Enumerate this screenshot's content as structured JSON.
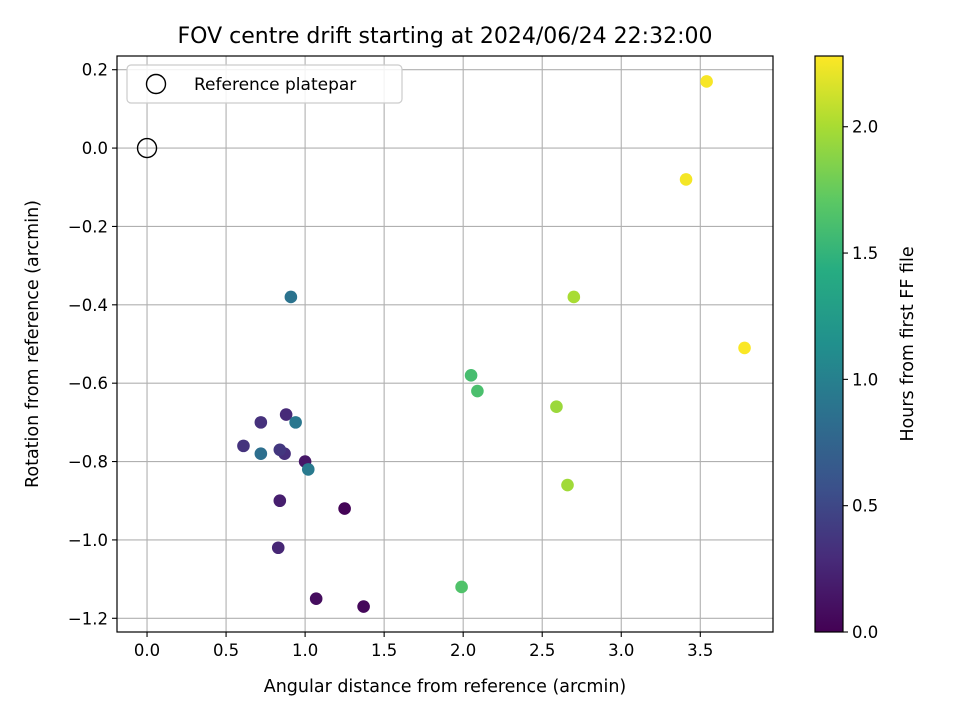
{
  "chart_data": {
    "type": "scatter",
    "title": "FOV centre drift starting at 2024/06/24 22:32:00",
    "xlabel": "Angular distance from reference (arcmin)",
    "ylabel": "Rotation from reference (arcmin)",
    "xlim": [
      -0.19,
      3.96
    ],
    "ylim": [
      -1.235,
      0.235
    ],
    "xticks": [
      0.0,
      0.5,
      1.0,
      1.5,
      2.0,
      2.5,
      3.0,
      3.5
    ],
    "xtick_labels": [
      "0.0",
      "0.5",
      "1.0",
      "1.5",
      "2.0",
      "2.5",
      "3.0",
      "3.5"
    ],
    "yticks": [
      0.2,
      0.0,
      -0.2,
      -0.4,
      -0.6,
      -0.8,
      -1.0,
      -1.2
    ],
    "ytick_labels": [
      "0.2",
      "0.0",
      "−0.2",
      "−0.4",
      "−0.6",
      "−0.8",
      "−1.0",
      "−1.2"
    ],
    "grid": true,
    "legend": {
      "placement": "upper-left",
      "label": "Reference platepar"
    },
    "reference_point": {
      "x": 0.0,
      "y": 0.0
    },
    "colormap": "viridis",
    "colorbar": {
      "label": "Hours from first FF file",
      "range": [
        0.0,
        2.28
      ],
      "ticks": [
        0.0,
        0.5,
        1.0,
        1.5,
        2.0
      ],
      "tick_labels": [
        "0.0",
        "0.5",
        "1.0",
        "1.5",
        "2.0"
      ]
    },
    "points": [
      {
        "x": 1.25,
        "y": -0.92,
        "hours": 0.02
      },
      {
        "x": 1.37,
        "y": -1.17,
        "hours": 0.05
      },
      {
        "x": 1.07,
        "y": -1.15,
        "hours": 0.08
      },
      {
        "x": 1.0,
        "y": -0.8,
        "hours": 0.15
      },
      {
        "x": 0.84,
        "y": -0.9,
        "hours": 0.2
      },
      {
        "x": 0.83,
        "y": -1.02,
        "hours": 0.26
      },
      {
        "x": 0.88,
        "y": -0.68,
        "hours": 0.28
      },
      {
        "x": 0.87,
        "y": -0.78,
        "hours": 0.32
      },
      {
        "x": 0.72,
        "y": -0.7,
        "hours": 0.33
      },
      {
        "x": 0.61,
        "y": -0.76,
        "hours": 0.35
      },
      {
        "x": 0.84,
        "y": -0.77,
        "hours": 0.38
      },
      {
        "x": 0.72,
        "y": -0.78,
        "hours": 0.85
      },
      {
        "x": 0.91,
        "y": -0.38,
        "hours": 0.88
      },
      {
        "x": 0.94,
        "y": -0.7,
        "hours": 0.92
      },
      {
        "x": 1.02,
        "y": -0.82,
        "hours": 0.95
      },
      {
        "x": 2.05,
        "y": -0.58,
        "hours": 1.6
      },
      {
        "x": 2.09,
        "y": -0.62,
        "hours": 1.62
      },
      {
        "x": 1.99,
        "y": -1.12,
        "hours": 1.65
      },
      {
        "x": 2.59,
        "y": -0.66,
        "hours": 1.95
      },
      {
        "x": 2.66,
        "y": -0.86,
        "hours": 1.97
      },
      {
        "x": 2.7,
        "y": -0.38,
        "hours": 2.0
      },
      {
        "x": 3.41,
        "y": -0.08,
        "hours": 2.25
      },
      {
        "x": 3.54,
        "y": 0.17,
        "hours": 2.26
      },
      {
        "x": 3.78,
        "y": -0.51,
        "hours": 2.27
      }
    ]
  }
}
